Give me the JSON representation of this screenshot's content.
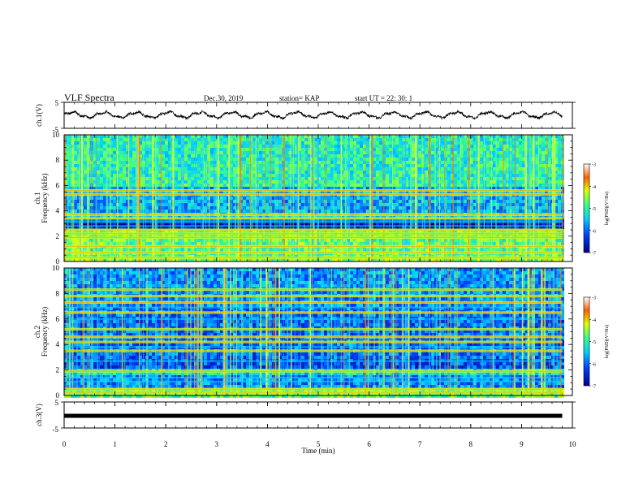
{
  "header": {
    "title": "VLF Spectra",
    "date": "Dec.30, 2019",
    "station": "station= KAP",
    "start": "start  UT =   22: 30: 1"
  },
  "chart_data": [
    {
      "type": "line",
      "panel": "waveform-ch1",
      "ylabel": "ch.1(V)",
      "ylim": [
        -5,
        5
      ],
      "yticks": [
        "5",
        "-5"
      ],
      "xlim": [
        0,
        10
      ],
      "duration_min": 9.8,
      "amplitude_range_V": [
        -1.5,
        1.8
      ]
    },
    {
      "type": "heatmap",
      "panel": "spectrogram-ch1",
      "ylabel_channel": "ch.1",
      "ylabel": "Frequency  (kHz)",
      "ylim": [
        0,
        10
      ],
      "yticks": [
        "0",
        "2",
        "4",
        "6",
        "8",
        "10"
      ],
      "xlim": [
        0,
        10
      ],
      "duration_min": 9.8,
      "colorbar": {
        "label": "log(PSD)(V²/Hz)",
        "ticks": [
          "-3",
          "-4",
          "-5",
          "-6",
          "-7"
        ],
        "range": [
          -7,
          -3
        ]
      },
      "strong_bands_kHz": [
        0.3,
        0.7,
        1.2,
        1.9,
        2.2,
        2.5,
        3.4,
        3.7,
        5.3,
        5.6
      ],
      "weak_bands_kHz": [
        2.8,
        3.1,
        3.2
      ]
    },
    {
      "type": "heatmap",
      "panel": "spectrogram-ch2",
      "ylabel_channel": "ch.2",
      "ylabel": "Frequency  (kHz)",
      "ylim": [
        0,
        10
      ],
      "yticks": [
        "0",
        "2",
        "4",
        "6",
        "8",
        "10"
      ],
      "xlim": [
        0,
        10
      ],
      "duration_min": 9.8,
      "colorbar": {
        "label": "log(PSD)(V²/Hz)",
        "ticks": [
          "-3",
          "-4",
          "-5",
          "-6",
          "-7"
        ],
        "range": [
          -7,
          -3
        ]
      },
      "strong_bands_kHz": [
        0.2,
        0.5,
        1.9,
        3.5,
        4.2,
        4.6,
        5.2,
        6.5,
        7.3,
        7.8,
        8.3
      ],
      "weak_bands_kHz": [
        1.1,
        1.4,
        2.7,
        3.8,
        6.0,
        6.9
      ]
    },
    {
      "type": "line",
      "panel": "waveform-ch3",
      "ylabel": "ch.3(V)",
      "ylim": [
        -5,
        5
      ],
      "yticks": [
        "5",
        "-5"
      ],
      "xlim": [
        0,
        10
      ],
      "duration_min": 9.8,
      "constant_value_V": 0
    }
  ],
  "xaxis": {
    "label": "Time  (min)",
    "ticks": [
      "0",
      "1",
      "2",
      "3",
      "4",
      "5",
      "6",
      "7",
      "8",
      "9",
      "10"
    ]
  }
}
